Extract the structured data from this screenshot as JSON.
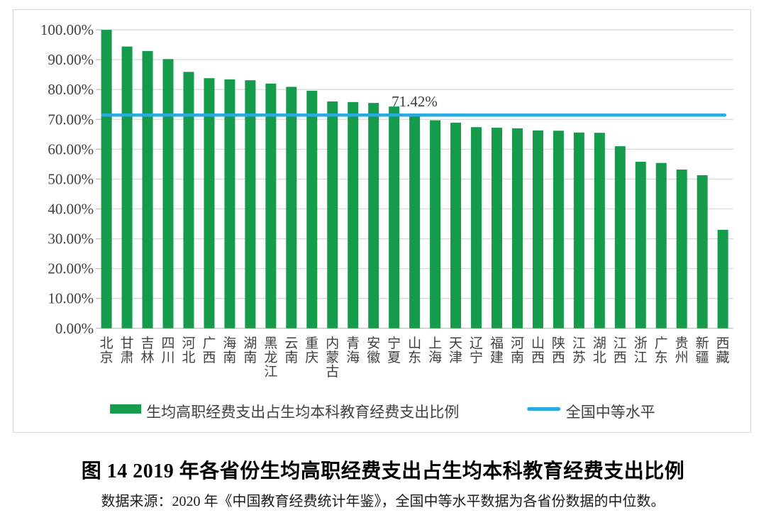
{
  "figure": {
    "title": "图 14 2019 年各省份生均高职经费支出占生均本科教育经费支出比例",
    "source": "数据来源：2020 年《中国教育经费统计年鉴》，全国中等水平数据为各省份数据的中位数。"
  },
  "chart_data": {
    "type": "bar",
    "title": "",
    "xlabel": "",
    "ylabel": "",
    "ylim": [
      0,
      100
    ],
    "ytick_step": 10,
    "yticks": [
      "0.00%",
      "10.00%",
      "20.00%",
      "30.00%",
      "40.00%",
      "50.00%",
      "60.00%",
      "70.00%",
      "80.00%",
      "90.00%",
      "100.00%"
    ],
    "grid": true,
    "legend_position": "bottom",
    "categories": [
      "北京",
      "甘肃",
      "吉林",
      "四川",
      "河北",
      "广西",
      "海南",
      "湖南",
      "黑龙江",
      "云南",
      "重庆",
      "内蒙古",
      "青海",
      "安徽",
      "宁夏",
      "山东",
      "上海",
      "天津",
      "辽宁",
      "福建",
      "河南",
      "山西",
      "陕西",
      "江苏",
      "湖北",
      "江西",
      "浙江",
      "广东",
      "贵州",
      "新疆",
      "西藏"
    ],
    "series": [
      {
        "name": "生均高职经费支出占生均本科教育经费支出比例",
        "type": "bar",
        "color": "#169a4b",
        "values": [
          100.0,
          94.4,
          92.9,
          90.2,
          85.9,
          83.8,
          83.4,
          83.1,
          82.0,
          80.9,
          79.6,
          76.0,
          75.8,
          75.5,
          74.3,
          71.42,
          69.7,
          68.9,
          67.4,
          67.2,
          67.0,
          66.3,
          66.2,
          65.6,
          65.5,
          61.0,
          55.8,
          55.4,
          53.2,
          51.3,
          33.0
        ]
      },
      {
        "name": "全国中等水平",
        "type": "line",
        "color": "#29abe2",
        "value": 71.42
      }
    ],
    "annotation": "71.42%",
    "colors": {
      "gridline": "#d9d9d9",
      "axis_line": "#bfbfbf",
      "tick_label": "#404040",
      "annotation_text": "#3c3c3c"
    }
  }
}
